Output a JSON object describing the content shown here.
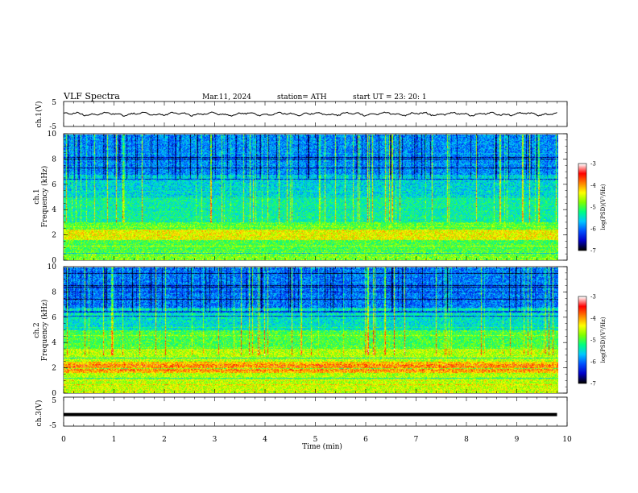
{
  "header": {
    "title": "VLF  Spectra",
    "date": "Mar.11, 2024",
    "station": "station= ATH",
    "start": "start  UT  =   23: 20: 1"
  },
  "chart_data": [
    {
      "type": "line",
      "panel": "ch1-waveform",
      "ylabel": "ch.1(V)",
      "ylim": [
        -5,
        5
      ],
      "yticks": [
        "5",
        "-5"
      ],
      "xlim": [
        0,
        10
      ],
      "series": [
        {
          "values_description_free": true,
          "x_range": [
            0,
            9.8
          ],
          "y_range_approx": [
            -0.8,
            0.8
          ]
        }
      ]
    },
    {
      "type": "heatmap",
      "panel": "ch1-spectrogram",
      "ylabel": "ch.1\nFrequency  (kHz)",
      "ylabel_lines": [
        "ch.1",
        "Frequency  (kHz)"
      ],
      "ylim": [
        0,
        10
      ],
      "yticks": [
        "0",
        "2",
        "4",
        "6",
        "8",
        "10"
      ],
      "xlim": [
        0,
        9.8
      ],
      "colorbar": {
        "label": "log(PSD)(V²/Hz)",
        "range": [
          -7,
          -3
        ],
        "ticks": [
          "-3",
          "-4",
          "-5",
          "-6",
          "-7"
        ],
        "colors": [
          "#000000",
          "#0000c8",
          "#0050ff",
          "#00c8ff",
          "#00ff80",
          "#80ff00",
          "#ffff00",
          "#ff8000",
          "#ff0000",
          "#ffffff"
        ]
      }
    },
    {
      "type": "heatmap",
      "panel": "ch2-spectrogram",
      "ylabel": "ch.2\nFrequency  (kHz)",
      "ylabel_lines": [
        "ch.2",
        "Frequency  (kHz)"
      ],
      "ylim": [
        0,
        10
      ],
      "yticks": [
        "0",
        "2",
        "4",
        "6",
        "8",
        "10"
      ],
      "xlim": [
        0,
        9.8
      ],
      "colorbar": {
        "label": "log(PSD)(V²/Hz)",
        "range": [
          -7,
          -3
        ],
        "ticks": [
          "-3",
          "-4",
          "-5",
          "-6",
          "-7"
        ],
        "colors": [
          "#000000",
          "#0000c8",
          "#0050ff",
          "#00c8ff",
          "#00ff80",
          "#80ff00",
          "#ffff00",
          "#ff8000",
          "#ff0000",
          "#ffffff"
        ]
      }
    },
    {
      "type": "line",
      "panel": "ch3-waveform",
      "ylabel": "ch.3(V)",
      "ylim": [
        -5,
        5
      ],
      "yticks": [
        "5",
        "-5"
      ],
      "xlim": [
        0,
        10
      ],
      "series": [
        {
          "constant_value": -1,
          "x_range": [
            0,
            9.8
          ]
        }
      ]
    }
  ],
  "xaxis": {
    "label": "Time  (min)",
    "ticks": [
      "0",
      "1",
      "2",
      "3",
      "4",
      "5",
      "6",
      "7",
      "8",
      "9",
      "10"
    ]
  }
}
